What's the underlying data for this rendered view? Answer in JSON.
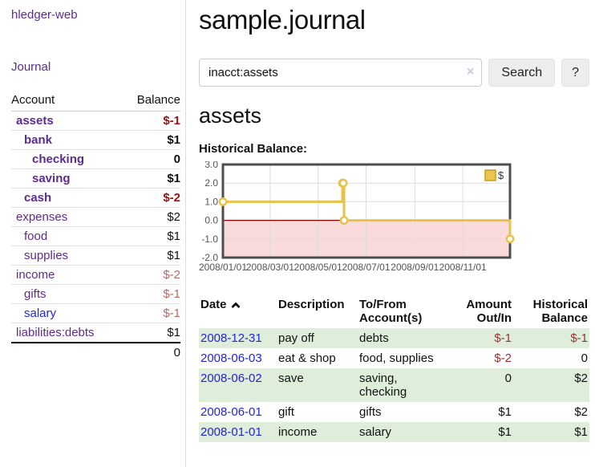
{
  "app": {
    "title": "hledger-web"
  },
  "sidebar": {
    "journal_label": "Journal",
    "account_header": "Account",
    "balance_header": "Balance",
    "rows": [
      {
        "name": "assets",
        "balance": "$-1",
        "indent": 1,
        "bold": true,
        "neg": "strong"
      },
      {
        "name": "bank",
        "balance": "$1",
        "indent": 2,
        "bold": true,
        "neg": null
      },
      {
        "name": "checking",
        "balance": "0",
        "indent": 3,
        "bold": true,
        "neg": null
      },
      {
        "name": "saving",
        "balance": "$1",
        "indent": 3,
        "bold": true,
        "neg": null
      },
      {
        "name": "cash",
        "balance": "$-2",
        "indent": 2,
        "bold": true,
        "neg": "strong"
      },
      {
        "name": "expenses",
        "balance": "$2",
        "indent": 1,
        "bold": false,
        "neg": null
      },
      {
        "name": "food",
        "balance": "$1",
        "indent": 2,
        "bold": false,
        "neg": null
      },
      {
        "name": "supplies",
        "balance": "$1",
        "indent": 2,
        "bold": false,
        "neg": null
      },
      {
        "name": "income",
        "balance": "$-2",
        "indent": 1,
        "bold": false,
        "neg": "soft"
      },
      {
        "name": "gifts",
        "balance": "$-1",
        "indent": 2,
        "bold": false,
        "neg": "soft"
      },
      {
        "name": "salary",
        "balance": "$-1",
        "indent": 2,
        "bold": false,
        "neg": "soft",
        "link_color": "blue"
      },
      {
        "name": "liabilities:debts",
        "balance": "$1",
        "indent": 1,
        "bold": false,
        "neg": null
      }
    ],
    "total": "0"
  },
  "main": {
    "title": "sample.journal",
    "search": {
      "value": "inacct:assets",
      "clear_icon": "×",
      "button_label": "Search",
      "help_label": "?"
    },
    "account_heading": "assets"
  },
  "chart_data": {
    "type": "line",
    "step": true,
    "title": "Historical Balance:",
    "series": [
      {
        "name": "$",
        "color": "#e8c34a",
        "points": [
          [
            "2008-01-01",
            1
          ],
          [
            "2008-06-01",
            2
          ],
          [
            "2008-06-02",
            2
          ],
          [
            "2008-06-03",
            0
          ],
          [
            "2008-12-31",
            -1
          ]
        ]
      }
    ],
    "x_range": [
      "2008-01-01",
      "2008-12-31"
    ],
    "x_tick_labels": [
      "2008/01/01",
      "2008/03/01",
      "2008/05/01",
      "2008/07/01",
      "2008/09/01",
      "2008/11/01"
    ],
    "y_ticks": [
      "3.0",
      "2.0",
      "1.0",
      "0.0",
      "-1.0",
      "-2.0"
    ],
    "ylim": [
      -2,
      3
    ],
    "grid": true,
    "negative_fill": "#fadbdb",
    "zero_line_color": "#8b0000",
    "border_color": "#4d4d4d",
    "tick_color": "#545454",
    "legend": {
      "label": "$",
      "position": "top-right",
      "swatch_fill": "#eac64f",
      "swatch_border": "#c79e1e"
    }
  },
  "register": {
    "headers": [
      "Date",
      "Description",
      "To/From Account(s)",
      "Amount Out/In",
      "Historical Balance"
    ],
    "sort": {
      "column": "Date",
      "direction": "asc"
    },
    "rows": [
      {
        "date": "2008-12-31",
        "description": "pay off",
        "accounts": "debts",
        "amount": "$-1",
        "amount_neg": true,
        "balance": "$-1",
        "balance_neg": true
      },
      {
        "date": "2008-06-03",
        "description": "eat & shop",
        "accounts": "food, supplies",
        "amount": "$-2",
        "amount_neg": true,
        "balance": "0",
        "balance_neg": false
      },
      {
        "date": "2008-06-02",
        "description": "save",
        "accounts": "saving,\nchecking",
        "amount": "0",
        "amount_neg": false,
        "balance": "$2",
        "balance_neg": false
      },
      {
        "date": "2008-06-01",
        "description": "gift",
        "accounts": "gifts",
        "amount": "$1",
        "amount_neg": false,
        "balance": "$2",
        "balance_neg": false
      },
      {
        "date": "2008-01-01",
        "description": "income",
        "accounts": "salary",
        "amount": "$1",
        "amount_neg": false,
        "balance": "$1",
        "balance_neg": false
      }
    ]
  }
}
